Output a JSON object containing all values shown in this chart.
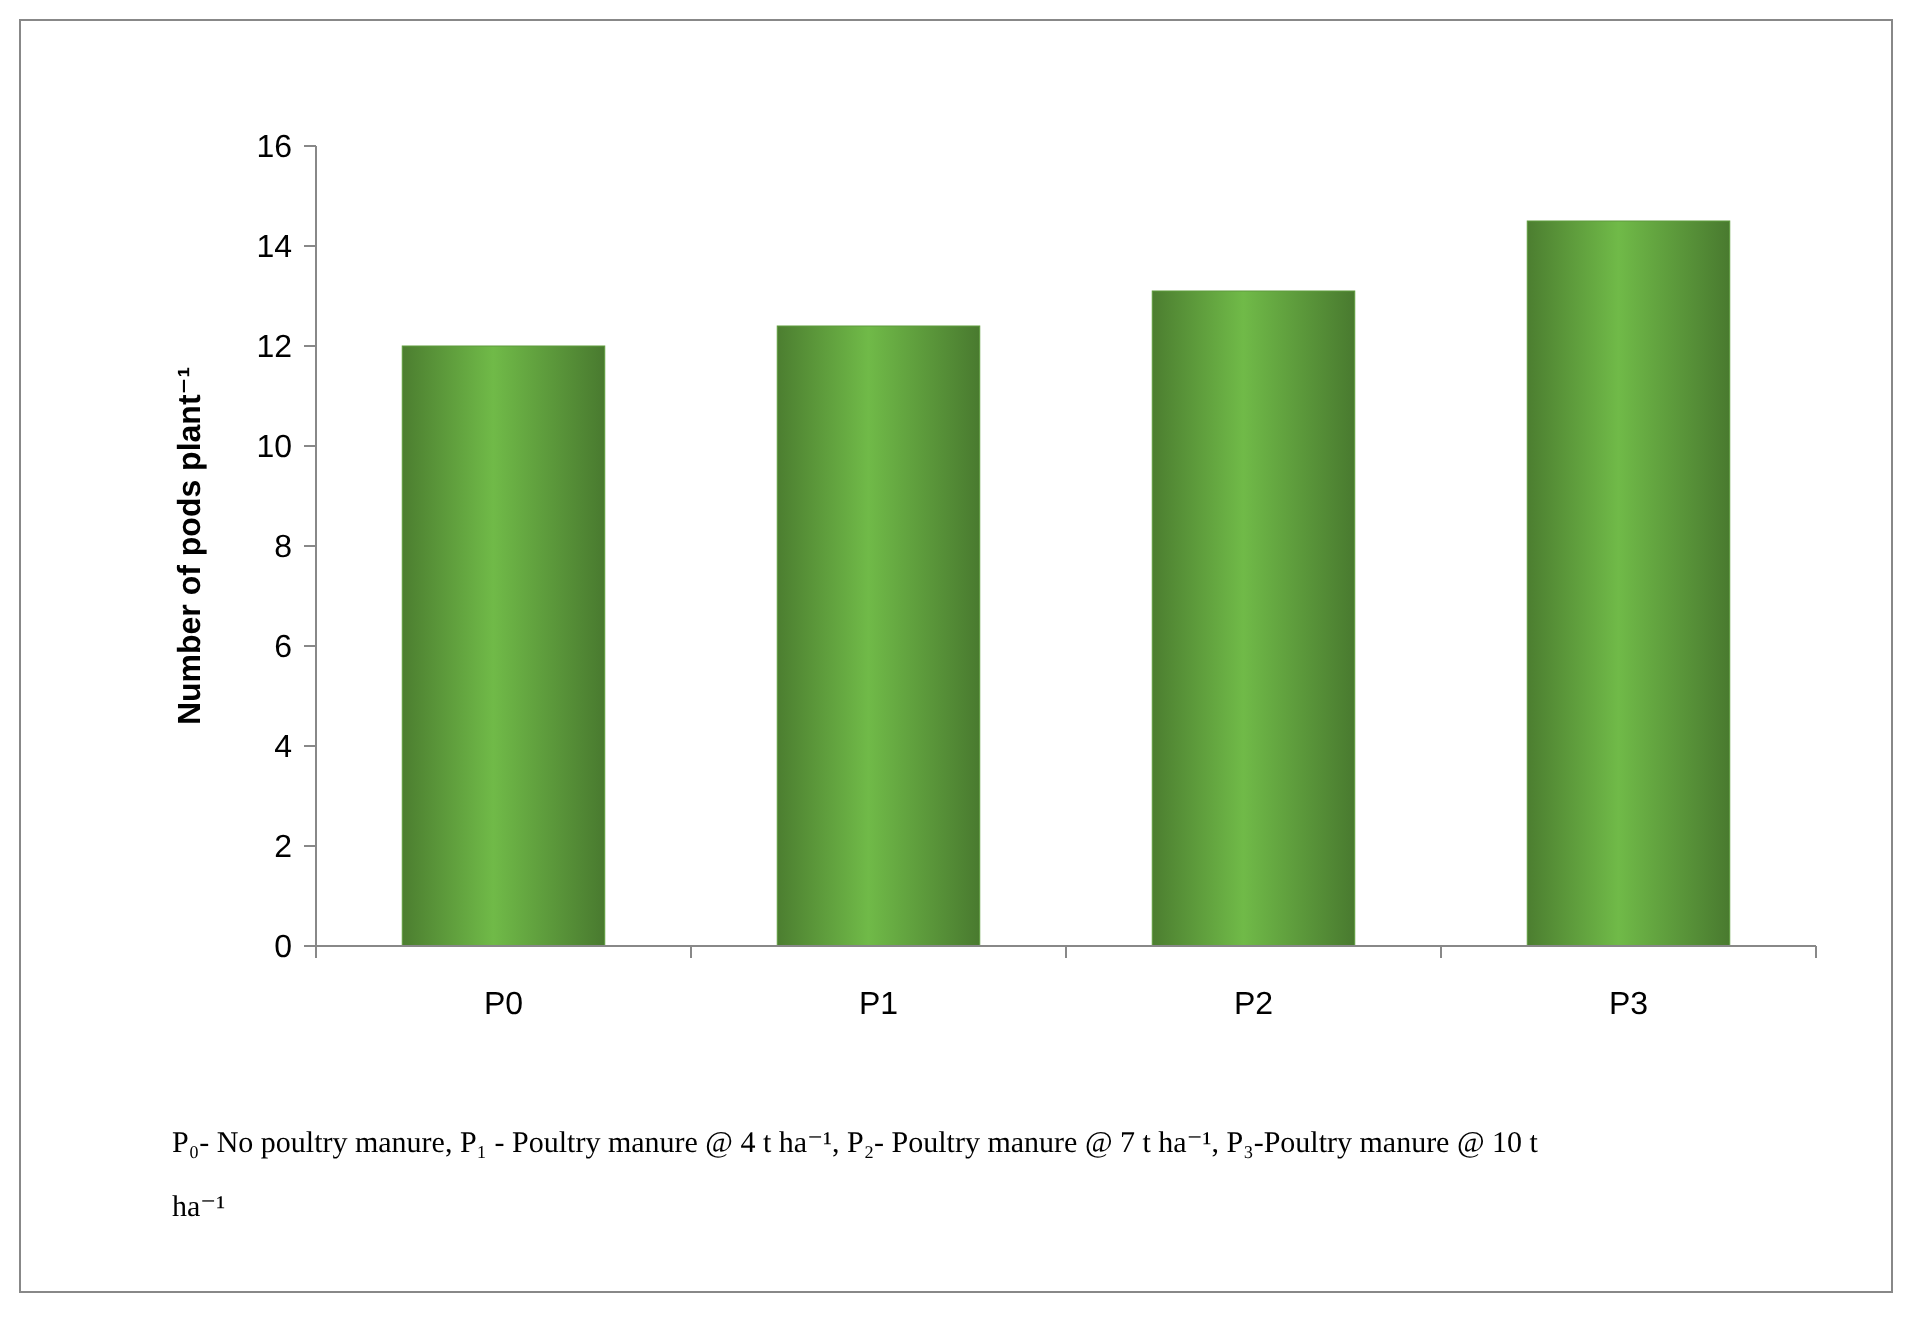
{
  "chart_data": {
    "type": "bar",
    "ylabel": "Number of pods plant⁻¹",
    "categories": [
      "P0",
      "P1",
      "P2",
      "P3"
    ],
    "values": [
      12.0,
      12.4,
      13.1,
      14.5
    ],
    "color": "#5e9c3c",
    "ylim": [
      0,
      16
    ],
    "yticks": [
      0,
      2,
      4,
      6,
      8,
      10,
      12,
      14,
      16
    ],
    "grid": false,
    "annotations": [
      "P₀- No poultry manure, P₁ - Poultry manure @ 4 t ha⁻¹, P₂- Poultry manure @ 7 t ha⁻¹, P₃-Poultry manure @ 10 t ha⁻¹"
    ]
  }
}
